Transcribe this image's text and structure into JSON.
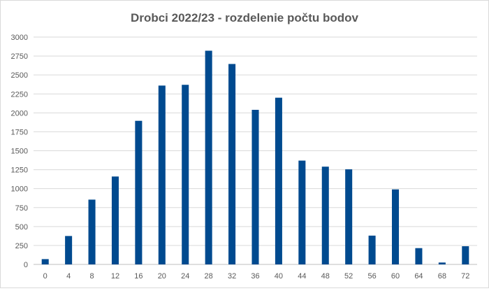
{
  "chart_data": {
    "type": "bar",
    "title": "Drobci 2022/23 - rozdelenie počtu bodov",
    "xlabel": "",
    "ylabel": "",
    "categories": [
      "0",
      "4",
      "8",
      "12",
      "16",
      "20",
      "24",
      "28",
      "32",
      "36",
      "40",
      "44",
      "48",
      "52",
      "56",
      "60",
      "64",
      "68",
      "72"
    ],
    "values": [
      70,
      375,
      855,
      1160,
      1895,
      2360,
      2370,
      2820,
      2645,
      2040,
      2200,
      1370,
      1290,
      1255,
      380,
      990,
      215,
      25,
      240
    ],
    "ylim": [
      0,
      3000
    ],
    "yticks": [
      "0",
      "250",
      "500",
      "750",
      "1000",
      "1250",
      "1500",
      "1750",
      "2000",
      "2250",
      "2500",
      "2750",
      "3000"
    ],
    "grid": true,
    "legend": "none",
    "bar_color": "#004a8f"
  }
}
